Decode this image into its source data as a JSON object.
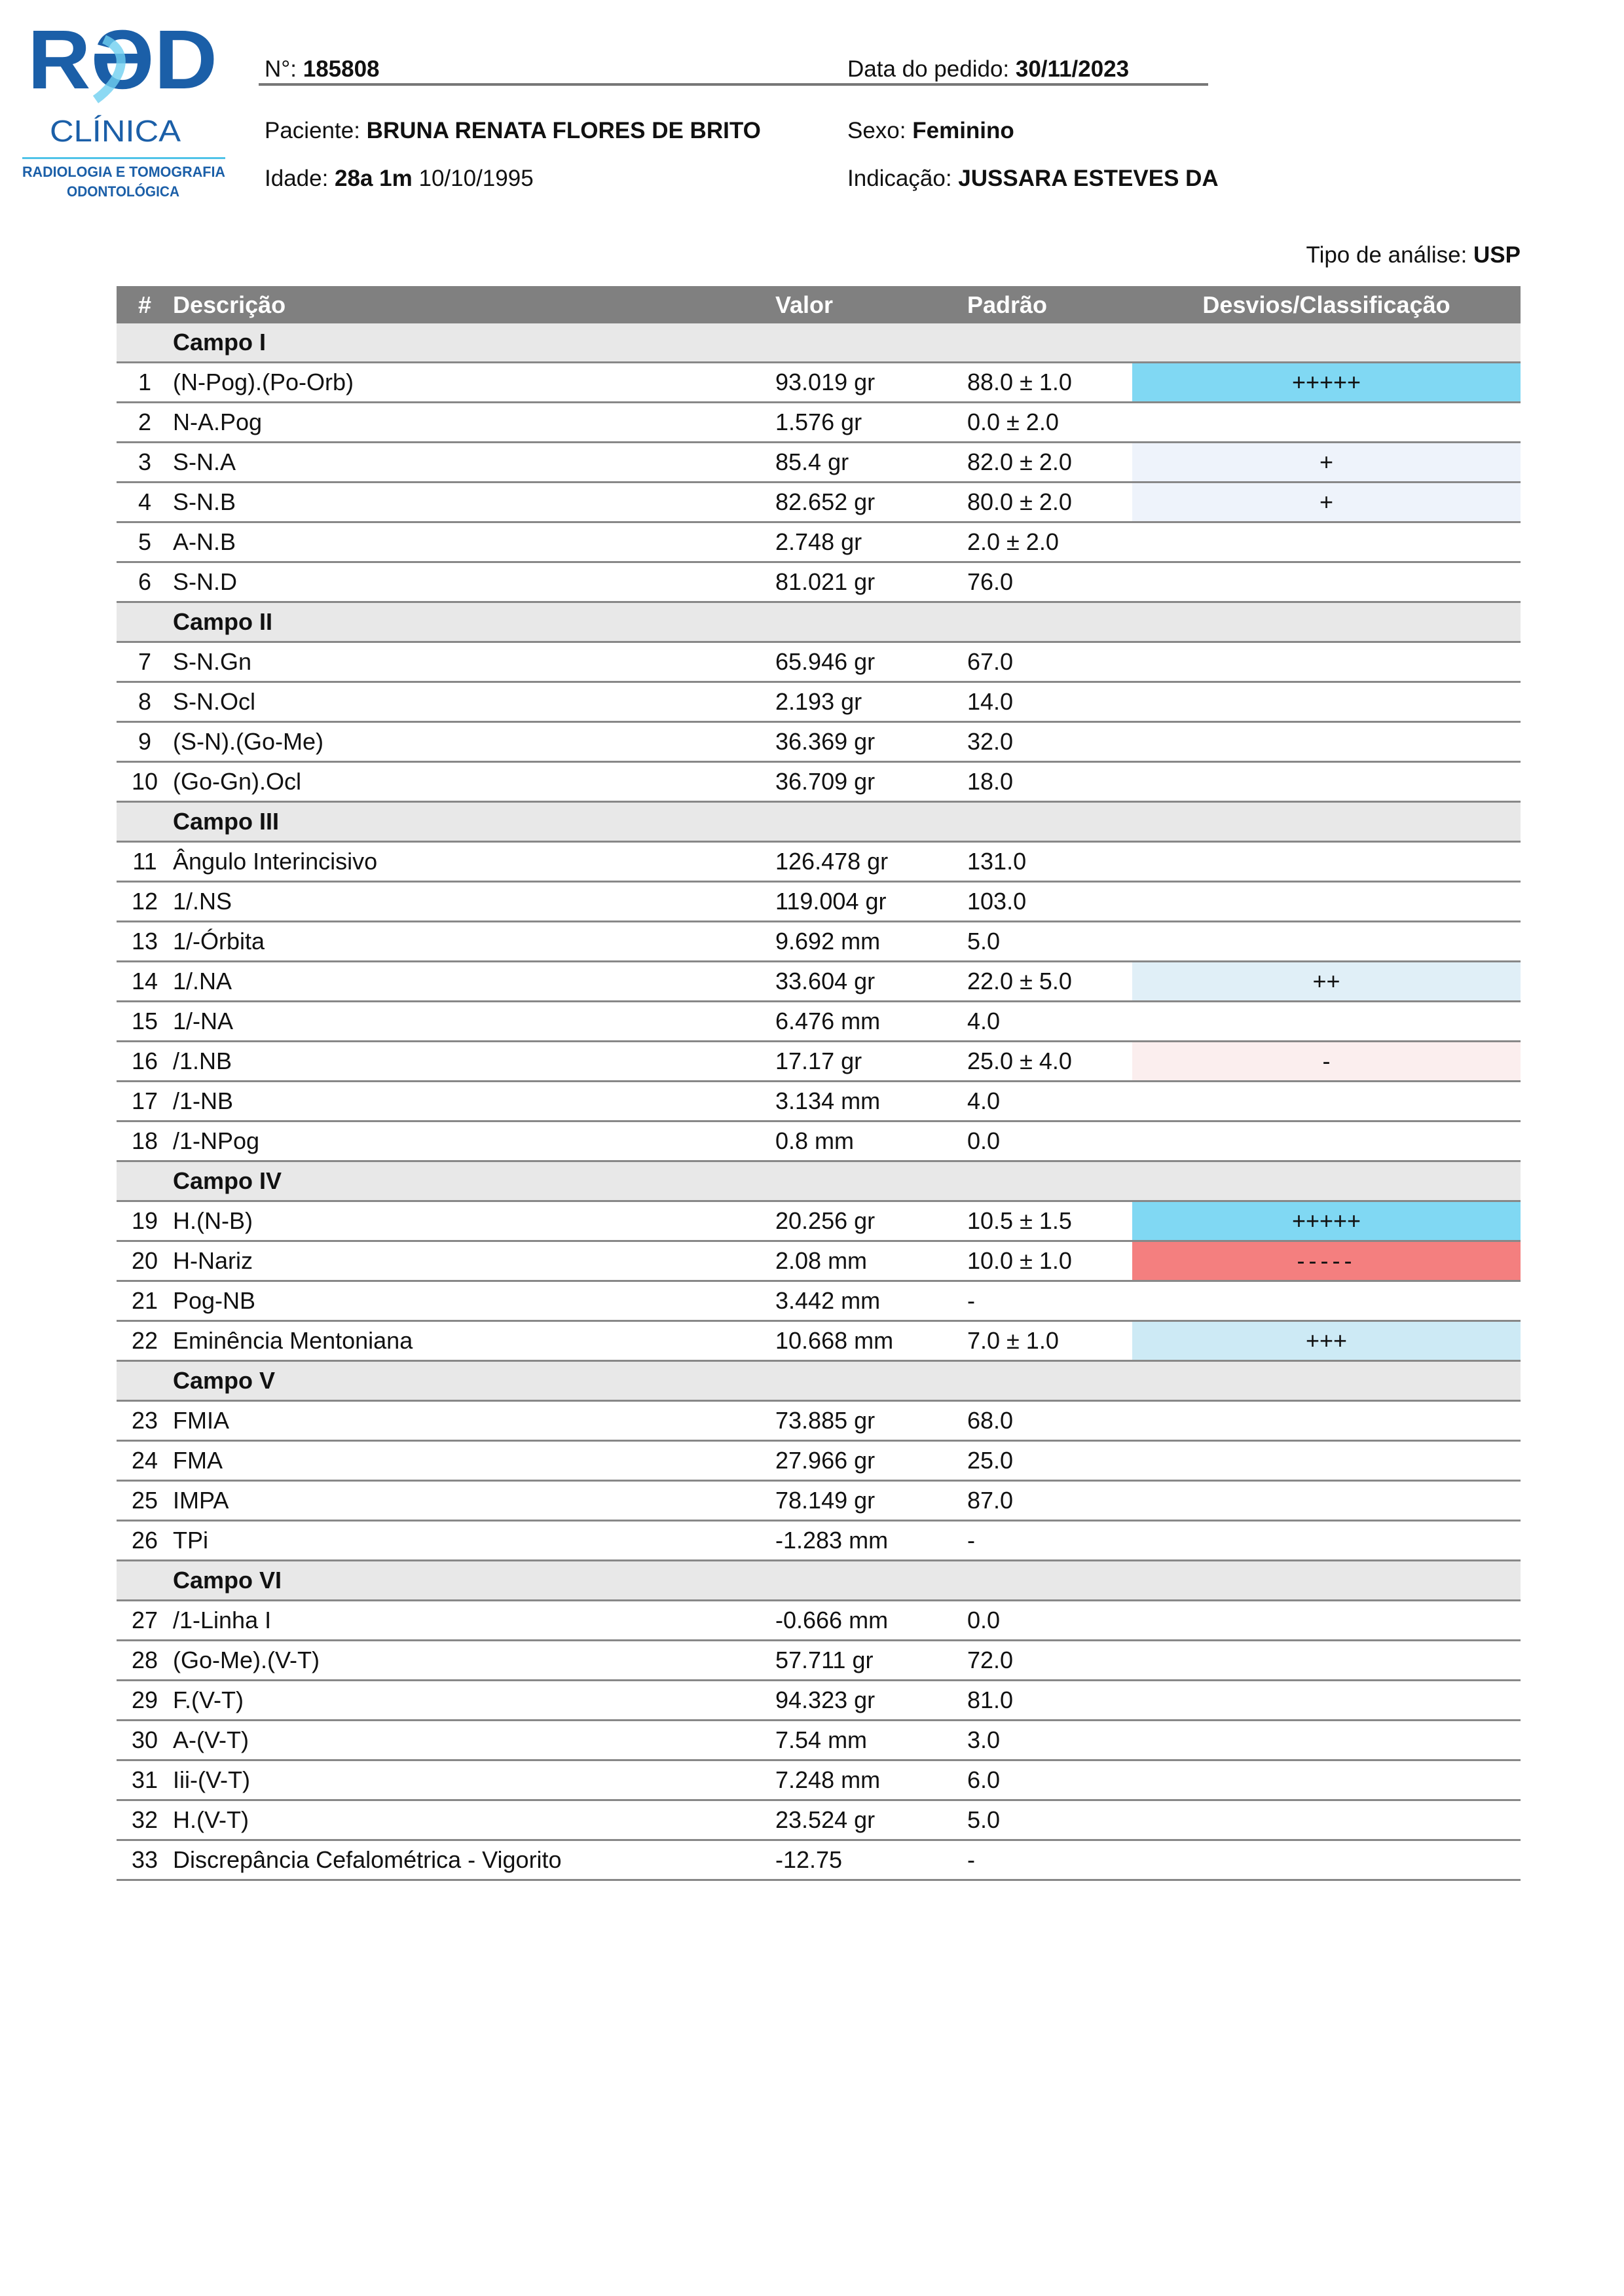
{
  "logo": {
    "text_main": "RaD",
    "text_sub": "CLÍNICA",
    "tagline_1": "RADIOLOGIA E TOMOGRAFIA",
    "tagline_2": "ODONTOLÓGICA",
    "colors": {
      "blue": "#1b5fa8",
      "light": "#4fc3e8"
    }
  },
  "header": {
    "number_label": "N°:",
    "number": "185808",
    "date_label": "Data do pedido:",
    "date": "30/11/2023",
    "patient_label": "Paciente:",
    "patient": "BRUNA RENATA FLORES DE BRITO",
    "sex_label": "Sexo:",
    "sex": "Feminino",
    "age_label": "Idade:",
    "age": "28a 1m",
    "birth": "10/10/1995",
    "indication_label": "Indicação:",
    "indication": "JUSSARA ESTEVES DA",
    "analysis_label": "Tipo de análise:",
    "analysis": "USP"
  },
  "table": {
    "columns": [
      "#",
      "Descrição",
      "Valor",
      "Padrão",
      "Desvios/Classificação"
    ],
    "colors": {
      "+++++": "#80d8f3",
      "-----": "#f47f7f",
      "+": "#eef3fb",
      "++": "#e0eff7",
      "+++": "#cdeaf5",
      "-": "#fbeeee"
    },
    "rows": [
      {
        "group": "Campo I"
      },
      {
        "n": "1",
        "desc": "(N-Pog).(Po-Orb)",
        "val": "93.019 gr",
        "std": "88.0 ± 1.0",
        "dev": "+++++"
      },
      {
        "n": "2",
        "desc": "N-A.Pog",
        "val": "1.576 gr",
        "std": "0.0 ± 2.0",
        "dev": ""
      },
      {
        "n": "3",
        "desc": "S-N.A",
        "val": "85.4 gr",
        "std": "82.0 ± 2.0",
        "dev": "+"
      },
      {
        "n": "4",
        "desc": "S-N.B",
        "val": "82.652 gr",
        "std": "80.0 ± 2.0",
        "dev": "+"
      },
      {
        "n": "5",
        "desc": "A-N.B",
        "val": "2.748 gr",
        "std": "2.0 ± 2.0",
        "dev": ""
      },
      {
        "n": "6",
        "desc": "S-N.D",
        "val": "81.021 gr",
        "std": "76.0",
        "dev": ""
      },
      {
        "group": "Campo II"
      },
      {
        "n": "7",
        "desc": "S-N.Gn",
        "val": "65.946 gr",
        "std": "67.0",
        "dev": ""
      },
      {
        "n": "8",
        "desc": "S-N.Ocl",
        "val": "2.193 gr",
        "std": "14.0",
        "dev": ""
      },
      {
        "n": "9",
        "desc": "(S-N).(Go-Me)",
        "val": "36.369 gr",
        "std": "32.0",
        "dev": ""
      },
      {
        "n": "10",
        "desc": "(Go-Gn).Ocl",
        "val": "36.709 gr",
        "std": "18.0",
        "dev": ""
      },
      {
        "group": "Campo III"
      },
      {
        "n": "11",
        "desc": "Ângulo Interincisivo",
        "val": "126.478 gr",
        "std": "131.0",
        "dev": ""
      },
      {
        "n": "12",
        "desc": "1/.NS",
        "val": "119.004 gr",
        "std": "103.0",
        "dev": ""
      },
      {
        "n": "13",
        "desc": "1/-Órbita",
        "val": "9.692 mm",
        "std": "5.0",
        "dev": ""
      },
      {
        "n": "14",
        "desc": "1/.NA",
        "val": "33.604 gr",
        "std": "22.0 ± 5.0",
        "dev": "++"
      },
      {
        "n": "15",
        "desc": "1/-NA",
        "val": "6.476 mm",
        "std": "4.0",
        "dev": ""
      },
      {
        "n": "16",
        "desc": "/1.NB",
        "val": "17.17 gr",
        "std": "25.0 ± 4.0",
        "dev": "-"
      },
      {
        "n": "17",
        "desc": "/1-NB",
        "val": "3.134 mm",
        "std": "4.0",
        "dev": ""
      },
      {
        "n": "18",
        "desc": "/1-NPog",
        "val": "0.8 mm",
        "std": "0.0",
        "dev": ""
      },
      {
        "group": "Campo IV"
      },
      {
        "n": "19",
        "desc": "H.(N-B)",
        "val": "20.256 gr",
        "std": "10.5 ± 1.5",
        "dev": "+++++"
      },
      {
        "n": "20",
        "desc": "H-Nariz",
        "val": "2.08 mm",
        "std": "10.0 ± 1.0",
        "dev": "-----"
      },
      {
        "n": "21",
        "desc": "Pog-NB",
        "val": "3.442 mm",
        "std": "-",
        "dev": ""
      },
      {
        "n": "22",
        "desc": "Eminência Mentoniana",
        "val": "10.668 mm",
        "std": "7.0 ± 1.0",
        "dev": "+++"
      },
      {
        "group": "Campo V"
      },
      {
        "n": "23",
        "desc": "FMIA",
        "val": "73.885 gr",
        "std": "68.0",
        "dev": ""
      },
      {
        "n": "24",
        "desc": "FMA",
        "val": "27.966 gr",
        "std": "25.0",
        "dev": ""
      },
      {
        "n": "25",
        "desc": "IMPA",
        "val": "78.149 gr",
        "std": "87.0",
        "dev": ""
      },
      {
        "n": "26",
        "desc": "TPi",
        "val": "-1.283 mm",
        "std": "-",
        "dev": ""
      },
      {
        "group": "Campo VI"
      },
      {
        "n": "27",
        "desc": "/1-Linha I",
        "val": "-0.666 mm",
        "std": "0.0",
        "dev": ""
      },
      {
        "n": "28",
        "desc": "(Go-Me).(V-T)",
        "val": "57.711 gr",
        "std": "72.0",
        "dev": ""
      },
      {
        "n": "29",
        "desc": "F.(V-T)",
        "val": "94.323 gr",
        "std": "81.0",
        "dev": ""
      },
      {
        "n": "30",
        "desc": "A-(V-T)",
        "val": "7.54 mm",
        "std": "3.0",
        "dev": ""
      },
      {
        "n": "31",
        "desc": "Iii-(V-T)",
        "val": "7.248 mm",
        "std": "6.0",
        "dev": ""
      },
      {
        "n": "32",
        "desc": "H.(V-T)",
        "val": "23.524 gr",
        "std": "5.0",
        "dev": ""
      },
      {
        "n": "33",
        "desc": "Discrepância Cefalométrica - Vigorito",
        "val": "-12.75",
        "std": "-",
        "dev": ""
      }
    ]
  }
}
